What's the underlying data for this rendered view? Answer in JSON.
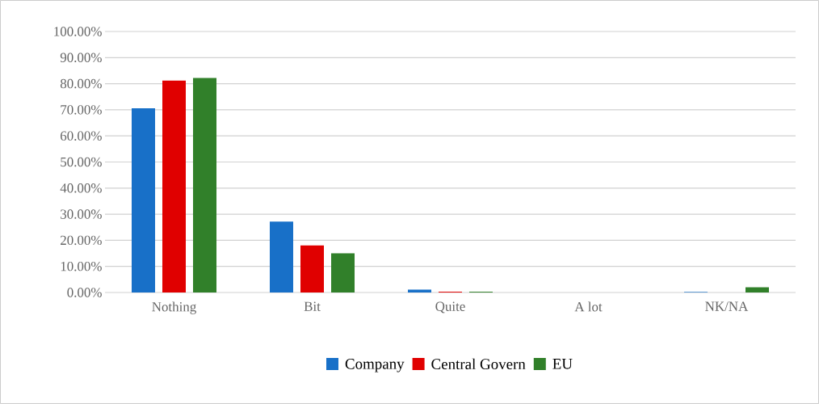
{
  "chart_data": {
    "type": "bar",
    "categories": [
      "Nothing",
      "Bit",
      "Quite",
      "A lot",
      "NK/NA"
    ],
    "series": [
      {
        "name": "Company",
        "color": "#1870c8",
        "values": [
          70.6,
          27.2,
          1.1,
          0,
          0.2
        ]
      },
      {
        "name": "Central Govern",
        "color": "#e00000",
        "values": [
          81.2,
          18.0,
          0.3,
          0,
          0
        ]
      },
      {
        "name": "EU",
        "color": "#31802a",
        "values": [
          82.2,
          15.0,
          0.3,
          0,
          2.0
        ]
      }
    ],
    "ylim": [
      0,
      100
    ],
    "yticks": [
      {
        "value": 0,
        "label": "0.00%"
      },
      {
        "value": 10,
        "label": "10.00%"
      },
      {
        "value": 20,
        "label": "20.00%"
      },
      {
        "value": 30,
        "label": "30.00%"
      },
      {
        "value": 40,
        "label": "40.00%"
      },
      {
        "value": 50,
        "label": "50.00%"
      },
      {
        "value": 60,
        "label": "60.00%"
      },
      {
        "value": 70,
        "label": "70.00%"
      },
      {
        "value": 80,
        "label": "80.00%"
      },
      {
        "value": 90,
        "label": "90.00%"
      },
      {
        "value": 100,
        "label": "100.00%"
      }
    ],
    "grid": "y",
    "legend": "bottom"
  }
}
